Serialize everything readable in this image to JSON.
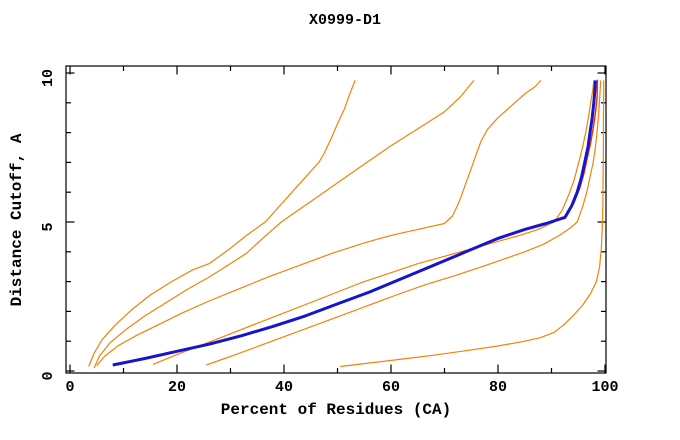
{
  "window": {
    "background": "#FFFFFF"
  },
  "chart_data": {
    "type": "line",
    "title": "X0999-D1",
    "xlabel": "Percent of Residues (CA)",
    "ylabel": "Distance Cutoff, A",
    "xlim": [
      0,
      100
    ],
    "ylim": [
      0,
      10
    ],
    "x_major_ticks": [
      0,
      20,
      40,
      60,
      80,
      100
    ],
    "x_minor_ticks": [
      10,
      30,
      50,
      70,
      90
    ],
    "y_major_ticks": [
      0,
      5,
      10
    ],
    "y_minor_ticks": [
      1,
      2,
      3,
      4,
      6,
      7,
      8,
      9
    ],
    "grid": false,
    "legend": "none",
    "frame": "closed box, ticks point inward on all four sides, y tick labels rotated 90",
    "colors": {
      "model_curves": "#F2820A",
      "highlight_primary": "#1515CE",
      "highlight_secondary": "#EE3300",
      "frame_and_text": "#000000"
    },
    "series": [
      {
        "name": "model-orange-1",
        "color": "#F2820A",
        "width": 1.2,
        "points": [
          [
            3.5,
            0.15
          ],
          [
            4.5,
            0.6
          ],
          [
            6,
            1.05
          ],
          [
            8.5,
            1.55
          ],
          [
            11.5,
            2.05
          ],
          [
            15,
            2.55
          ],
          [
            19,
            3.0
          ],
          [
            23,
            3.4
          ],
          [
            26,
            3.6
          ],
          [
            29.5,
            4.05
          ],
          [
            33,
            4.55
          ],
          [
            36.5,
            5.0
          ],
          [
            39,
            5.5
          ],
          [
            41.5,
            6.0
          ],
          [
            44,
            6.5
          ],
          [
            46.5,
            7.0
          ],
          [
            47.5,
            7.3
          ],
          [
            48.8,
            7.8
          ],
          [
            50,
            8.3
          ],
          [
            51.3,
            8.8
          ],
          [
            52.3,
            9.3
          ],
          [
            53.3,
            9.75
          ]
        ]
      },
      {
        "name": "model-orange-2",
        "color": "#F2820A",
        "width": 1.2,
        "points": [
          [
            4.5,
            0.1
          ],
          [
            5.5,
            0.5
          ],
          [
            7.5,
            0.95
          ],
          [
            10.5,
            1.4
          ],
          [
            14,
            1.85
          ],
          [
            18,
            2.3
          ],
          [
            22,
            2.75
          ],
          [
            26,
            3.15
          ],
          [
            29.5,
            3.55
          ],
          [
            33,
            3.95
          ],
          [
            36,
            4.45
          ],
          [
            39.5,
            5.0
          ],
          [
            43.5,
            5.5
          ],
          [
            47.5,
            6.0
          ],
          [
            51.5,
            6.5
          ],
          [
            55.5,
            7.0
          ],
          [
            59.5,
            7.5
          ],
          [
            63,
            7.9
          ],
          [
            66.5,
            8.3
          ],
          [
            70,
            8.7
          ],
          [
            73,
            9.2
          ],
          [
            75.5,
            9.75
          ]
        ]
      },
      {
        "name": "model-orange-3",
        "color": "#F2820A",
        "width": 1.2,
        "points": [
          [
            5,
            0.18
          ],
          [
            6.5,
            0.5
          ],
          [
            9,
            0.85
          ],
          [
            12.5,
            1.2
          ],
          [
            16.5,
            1.55
          ],
          [
            21,
            1.95
          ],
          [
            26,
            2.35
          ],
          [
            31.5,
            2.75
          ],
          [
            37,
            3.15
          ],
          [
            43,
            3.55
          ],
          [
            49,
            3.95
          ],
          [
            55,
            4.3
          ],
          [
            60,
            4.55
          ],
          [
            65,
            4.75
          ],
          [
            70,
            4.95
          ],
          [
            71.5,
            5.2
          ],
          [
            72.8,
            5.7
          ],
          [
            73.8,
            6.2
          ],
          [
            74.8,
            6.7
          ],
          [
            75.8,
            7.2
          ],
          [
            76.8,
            7.7
          ],
          [
            78,
            8.1
          ],
          [
            80,
            8.5
          ],
          [
            82.5,
            8.9
          ],
          [
            85,
            9.3
          ],
          [
            87,
            9.55
          ],
          [
            88,
            9.75
          ]
        ]
      },
      {
        "name": "model-orange-4",
        "color": "#F2820A",
        "width": 1.2,
        "points": [
          [
            15.5,
            0.22
          ],
          [
            20,
            0.55
          ],
          [
            25,
            0.9
          ],
          [
            30,
            1.25
          ],
          [
            35,
            1.6
          ],
          [
            40,
            1.95
          ],
          [
            45,
            2.3
          ],
          [
            50,
            2.65
          ],
          [
            55,
            3.0
          ],
          [
            60,
            3.3
          ],
          [
            65,
            3.6
          ],
          [
            70,
            3.85
          ],
          [
            75,
            4.1
          ],
          [
            80,
            4.35
          ],
          [
            84,
            4.55
          ],
          [
            87.5,
            4.75
          ],
          [
            90.5,
            5.0
          ],
          [
            92,
            5.4
          ],
          [
            93.2,
            5.9
          ],
          [
            94.2,
            6.4
          ],
          [
            95.1,
            7.0
          ],
          [
            95.8,
            7.5
          ],
          [
            96.4,
            8.0
          ],
          [
            96.9,
            8.5
          ],
          [
            97.3,
            9.0
          ],
          [
            97.7,
            9.4
          ],
          [
            97.9,
            9.75
          ]
        ]
      },
      {
        "name": "model-orange-5",
        "color": "#F2820A",
        "width": 1.2,
        "points": [
          [
            25.5,
            0.2
          ],
          [
            31,
            0.55
          ],
          [
            37,
            0.95
          ],
          [
            43,
            1.35
          ],
          [
            49,
            1.75
          ],
          [
            55,
            2.15
          ],
          [
            61,
            2.55
          ],
          [
            66.5,
            2.9
          ],
          [
            72,
            3.2
          ],
          [
            77,
            3.5
          ],
          [
            81,
            3.75
          ],
          [
            85,
            4.0
          ],
          [
            88.5,
            4.25
          ],
          [
            91.5,
            4.55
          ],
          [
            93.5,
            4.8
          ],
          [
            94.8,
            5.0
          ],
          [
            95.8,
            5.5
          ],
          [
            96.6,
            6.0
          ],
          [
            97.2,
            6.5
          ],
          [
            97.8,
            7.0
          ],
          [
            98.2,
            7.5
          ],
          [
            98.5,
            8.0
          ],
          [
            98.8,
            8.6
          ],
          [
            99.0,
            9.1
          ],
          [
            99.2,
            9.75
          ]
        ]
      },
      {
        "name": "model-orange-6",
        "color": "#F2820A",
        "width": 1.2,
        "points": [
          [
            50.5,
            0.15
          ],
          [
            56,
            0.27
          ],
          [
            62,
            0.4
          ],
          [
            68,
            0.53
          ],
          [
            74,
            0.68
          ],
          [
            80,
            0.84
          ],
          [
            85,
            1.0
          ],
          [
            88,
            1.12
          ],
          [
            90.5,
            1.3
          ],
          [
            92.3,
            1.55
          ],
          [
            94,
            1.85
          ],
          [
            95.8,
            2.2
          ],
          [
            97.3,
            2.6
          ],
          [
            98.4,
            3.0
          ],
          [
            99.0,
            3.5
          ],
          [
            99.3,
            4.1
          ],
          [
            99.5,
            4.8
          ],
          [
            99.6,
            5.6
          ],
          [
            99.65,
            6.5
          ],
          [
            99.7,
            7.5
          ],
          [
            99.7,
            8.5
          ],
          [
            99.75,
            9.2
          ],
          [
            99.75,
            9.75
          ]
        ]
      },
      {
        "name": "model-red-highlight",
        "color": "#EE3300",
        "width": 1.5,
        "points": [
          [
            8,
            0.2
          ],
          [
            14,
            0.44
          ],
          [
            20,
            0.68
          ],
          [
            26,
            0.92
          ],
          [
            32,
            1.2
          ],
          [
            38,
            1.52
          ],
          [
            44,
            1.87
          ],
          [
            50,
            2.27
          ],
          [
            56,
            2.67
          ],
          [
            62,
            3.12
          ],
          [
            68,
            3.57
          ],
          [
            74,
            4.02
          ],
          [
            80,
            4.47
          ],
          [
            85,
            4.77
          ],
          [
            89,
            4.97
          ],
          [
            92.8,
            5.2
          ],
          [
            94.2,
            5.65
          ],
          [
            95.3,
            6.15
          ],
          [
            96.1,
            6.65
          ],
          [
            96.7,
            7.15
          ],
          [
            97.3,
            7.65
          ],
          [
            97.8,
            8.15
          ],
          [
            98.2,
            8.65
          ],
          [
            98.5,
            9.15
          ],
          [
            98.6,
            9.78
          ]
        ]
      },
      {
        "name": "model-blue-highlight",
        "color": "#1515CE",
        "width": 3,
        "points": [
          [
            8,
            0.2
          ],
          [
            14,
            0.42
          ],
          [
            20,
            0.66
          ],
          [
            26,
            0.9
          ],
          [
            32,
            1.18
          ],
          [
            38,
            1.5
          ],
          [
            44,
            1.85
          ],
          [
            50,
            2.25
          ],
          [
            56,
            2.65
          ],
          [
            62,
            3.1
          ],
          [
            68,
            3.55
          ],
          [
            74,
            4.0
          ],
          [
            80,
            4.45
          ],
          [
            85,
            4.75
          ],
          [
            89,
            4.95
          ],
          [
            92.5,
            5.15
          ],
          [
            93.8,
            5.55
          ],
          [
            94.8,
            6.0
          ],
          [
            95.6,
            6.5
          ],
          [
            96.2,
            7.0
          ],
          [
            96.8,
            7.5
          ],
          [
            97.2,
            8.0
          ],
          [
            97.6,
            8.5
          ],
          [
            97.9,
            9.0
          ],
          [
            98.1,
            9.4
          ],
          [
            98.2,
            9.75
          ]
        ]
      }
    ]
  }
}
